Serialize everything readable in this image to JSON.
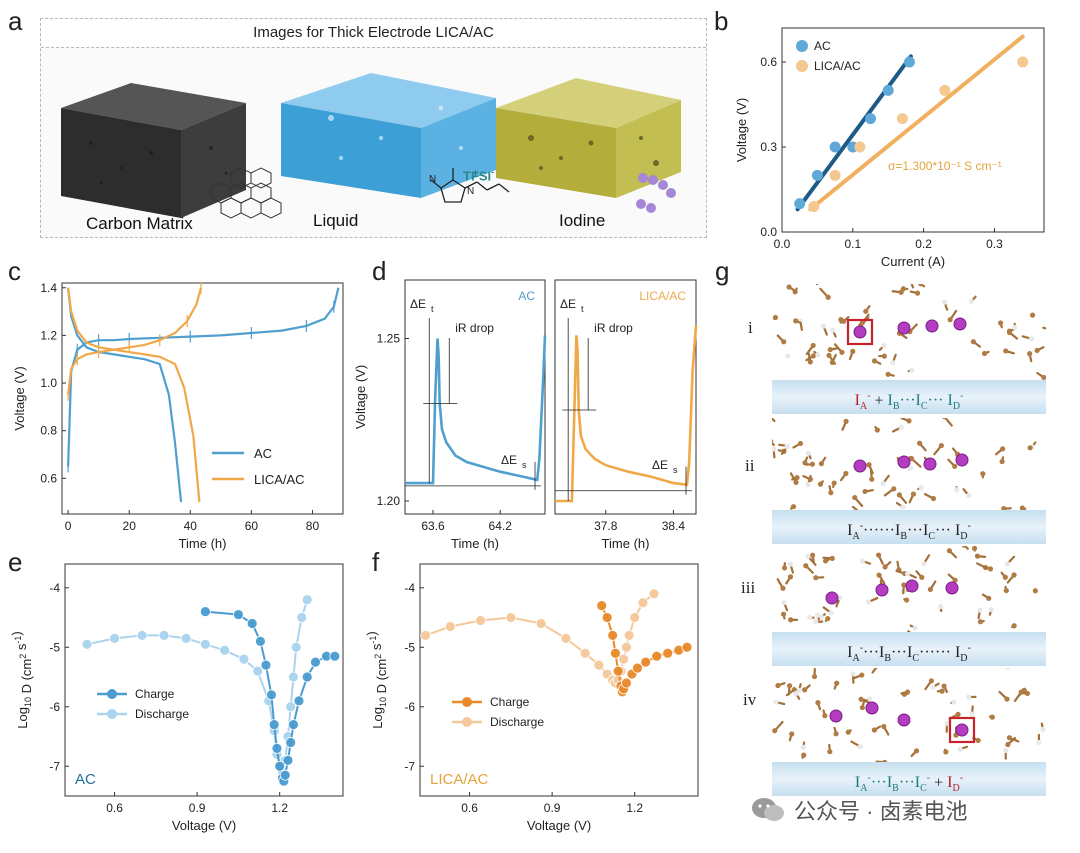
{
  "panel_labels": {
    "a": "a",
    "b": "b",
    "c": "c",
    "d": "d",
    "e": "e",
    "f": "f",
    "g": "g"
  },
  "panel_a": {
    "title": "Images for Thick Electrode LICA/AC",
    "captions": [
      "Carbon Matrix",
      "Liquid",
      "Iodine"
    ],
    "tfsi_label": "TFSI",
    "tfsi_sup": "-",
    "colors": {
      "carbon": "#3a3a3a",
      "liquid": "#3ca6dc",
      "iodine": "#b9b23c",
      "teal": "#2a8c8c"
    }
  },
  "panel_g": {
    "row_labels": [
      "i",
      "ii",
      "iii",
      "iv"
    ],
    "bands": [
      {
        "parts": [
          {
            "t": "I",
            "s": "A",
            "sup": "-",
            "c": "#b2232a"
          },
          {
            "t": " + "
          },
          {
            "t": "I",
            "s": "B",
            "sup": "",
            "c": "#1f7a7a"
          },
          {
            "t": "···I",
            "s": "C",
            "sup": "",
            "c": "#1f7a7a"
          },
          {
            "t": "··· I",
            "s": "D",
            "sup": "-",
            "c": "#1f7a7a"
          }
        ]
      },
      {
        "parts": [
          {
            "t": "I",
            "s": "A",
            "sup": "-",
            "c": "#222"
          },
          {
            "t": "······I",
            "s": "B",
            "sup": "",
            "c": "#222"
          },
          {
            "t": "···I",
            "s": "C",
            "sup": "",
            "c": "#222"
          },
          {
            "t": "··· I",
            "s": "D",
            "sup": "-",
            "c": "#222"
          }
        ]
      },
      {
        "parts": [
          {
            "t": "I",
            "s": "A",
            "sup": "-",
            "c": "#222"
          },
          {
            "t": "···I",
            "s": "B",
            "sup": "",
            "c": "#222"
          },
          {
            "t": "···I",
            "s": "C",
            "sup": "",
            "c": "#222"
          },
          {
            "t": "······ I",
            "s": "D",
            "sup": "-",
            "c": "#222"
          }
        ]
      },
      {
        "parts": [
          {
            "t": "I",
            "s": "A",
            "sup": "-",
            "c": "#1f7a7a"
          },
          {
            "t": "···I",
            "s": "B",
            "sup": "",
            "c": "#1f7a7a"
          },
          {
            "t": "···I",
            "s": "C",
            "sup": "-",
            "c": "#1f7a7a"
          },
          {
            "t": " + "
          },
          {
            "t": "I",
            "s": "D",
            "sup": "-",
            "c": "#b2232a"
          }
        ]
      }
    ]
  },
  "watermark": {
    "text": "公众号 · 卤素电池"
  },
  "chart_data": [
    {
      "id": "b",
      "type": "scatter",
      "xlabel": "Current (A)",
      "ylabel": "Voltage (V)",
      "xlim": [
        0,
        0.37
      ],
      "ylim": [
        0,
        0.72
      ],
      "xticks": [
        0,
        0.1,
        0.2,
        0.3
      ],
      "xtick_labels": [
        "0.0",
        "0.1",
        "0.2",
        "0.3"
      ],
      "yticks": [
        0,
        0.3,
        0.6
      ],
      "ytick_labels": [
        "0.0",
        "0.3",
        "0.6"
      ],
      "annotation": "σ=1.300*10⁻¹ S cm⁻¹",
      "legend": "top-left",
      "series": [
        {
          "name": "AC",
          "color": "#5fa9d8",
          "fit_color": "#1e5a86",
          "x": [
            0.025,
            0.05,
            0.075,
            0.1,
            0.125,
            0.15,
            0.18
          ],
          "y": [
            0.1,
            0.2,
            0.3,
            0.3,
            0.4,
            0.5,
            0.6
          ],
          "fit": [
            [
              0.022,
              0.08
            ],
            [
              0.182,
              0.62
            ]
          ]
        },
        {
          "name": "LICA/AC",
          "color": "#f3c98f",
          "fit_color": "#f0b060",
          "x": [
            0.045,
            0.075,
            0.11,
            0.17,
            0.23,
            0.34
          ],
          "y": [
            0.09,
            0.2,
            0.3,
            0.4,
            0.5,
            0.6
          ],
          "fit": [
            [
              0.04,
              0.08
            ],
            [
              0.34,
              0.69
            ]
          ]
        }
      ]
    },
    {
      "id": "c",
      "type": "line",
      "xlabel": "Time (h)",
      "ylabel": "Voltage (V)",
      "xlim": [
        -2,
        90
      ],
      "ylim": [
        0.45,
        1.42
      ],
      "xticks": [
        0,
        20,
        40,
        60,
        80
      ],
      "xtick_labels": [
        "0",
        "20",
        "40",
        "60",
        "80"
      ],
      "yticks": [
        0.6,
        0.8,
        1.0,
        1.2,
        1.4
      ],
      "ytick_labels": [
        "0.6",
        "0.8",
        "1.0",
        "1.2",
        "1.4"
      ],
      "legend": "bottom-right",
      "series": [
        {
          "name": "AC",
          "color": "#4f9fcf",
          "charge": {
            "x": [
              0,
              1,
              3,
              6,
              10,
              15,
              20,
              30,
              40,
              50,
              60,
              70,
              78,
              84,
              87,
              88.5
            ],
            "y": [
              0.65,
              1.05,
              1.14,
              1.17,
              1.18,
              1.18,
              1.185,
              1.19,
              1.195,
              1.2,
              1.21,
              1.22,
              1.24,
              1.27,
              1.32,
              1.4
            ]
          },
          "discharge": {
            "x": [
              0,
              1,
              3,
              6,
              10,
              15,
              20,
              25,
              30,
              33,
              35,
              37
            ],
            "y": [
              1.4,
              1.28,
              1.2,
              1.15,
              1.13,
              1.12,
              1.11,
              1.1,
              1.08,
              0.95,
              0.75,
              0.5
            ]
          }
        },
        {
          "name": "LICA/AC",
          "color": "#f0a848",
          "charge": {
            "x": [
              0,
              1,
              3,
              6,
              10,
              15,
              20,
              25,
              30,
              35,
              39,
              42,
              43.5
            ],
            "y": [
              0.95,
              1.06,
              1.1,
              1.12,
              1.13,
              1.14,
              1.15,
              1.16,
              1.18,
              1.21,
              1.26,
              1.33,
              1.4
            ]
          },
          "discharge": {
            "x": [
              0,
              1,
              3,
              6,
              10,
              15,
              20,
              25,
              30,
              35,
              38,
              41,
              43
            ],
            "y": [
              1.4,
              1.3,
              1.22,
              1.17,
              1.15,
              1.14,
              1.13,
              1.12,
              1.11,
              1.08,
              0.98,
              0.78,
              0.5
            ]
          }
        }
      ]
    },
    {
      "id": "d-left",
      "type": "line",
      "title": "AC",
      "xlabel": "Time (h)",
      "ylabel": "Voltage (V)",
      "xlim": [
        63.35,
        64.6
      ],
      "ylim": [
        1.196,
        1.268
      ],
      "xticks": [
        63.6,
        64.2
      ],
      "xtick_labels": [
        "63.6",
        "64.2"
      ],
      "yticks": [
        1.2,
        1.25
      ],
      "ytick_labels": [
        "1.20",
        "1.25"
      ],
      "annotations": {
        "delta_et": "ΔE",
        "delta_et_sub": "t",
        "ir_drop": "iR drop",
        "delta_es": "ΔE",
        "delta_es_sub": "s"
      },
      "series": [
        {
          "name": "AC",
          "color": "#4f9fcf",
          "x": [
            63.35,
            63.6,
            63.62,
            63.64,
            63.65,
            63.66,
            63.68,
            63.72,
            63.8,
            63.9,
            64.0,
            64.2,
            64.4,
            64.53,
            64.55,
            64.58,
            64.6
          ],
          "y": [
            1.2055,
            1.2055,
            1.232,
            1.25,
            1.245,
            1.23,
            1.222,
            1.218,
            1.214,
            1.212,
            1.211,
            1.209,
            1.2075,
            1.2065,
            1.213,
            1.235,
            1.251
          ]
        }
      ]
    },
    {
      "id": "d-right",
      "type": "line",
      "title": "LICA/AC",
      "xlabel": "Time (h)",
      "ylabel": "",
      "xlim": [
        37.35,
        38.6
      ],
      "ylim": [
        1.196,
        1.268
      ],
      "xticks": [
        37.8,
        38.4
      ],
      "xtick_labels": [
        "37.8",
        "38.4"
      ],
      "yticks": [],
      "ytick_labels": [],
      "annotations": {
        "delta_et": "ΔE",
        "delta_et_sub": "t",
        "ir_drop": "iR drop",
        "delta_es": "ΔE",
        "delta_es_sub": "s"
      },
      "series": [
        {
          "name": "LICA/AC",
          "color": "#f0a848",
          "x": [
            37.35,
            37.5,
            37.52,
            37.54,
            37.55,
            37.56,
            37.58,
            37.62,
            37.7,
            37.8,
            38.0,
            38.2,
            38.4,
            38.52,
            38.54,
            38.57,
            38.6
          ],
          "y": [
            1.2,
            1.2,
            1.226,
            1.251,
            1.246,
            1.228,
            1.22,
            1.216,
            1.213,
            1.211,
            1.209,
            1.2075,
            1.2055,
            1.205,
            1.212,
            1.24,
            1.254
          ]
        }
      ]
    },
    {
      "id": "e",
      "type": "line",
      "xlabel": "Voltage (V)",
      "ylabel": "Log10 D (cm2 s-1)",
      "label": "AC",
      "xlim": [
        0.42,
        1.43
      ],
      "ylim": [
        -7.5,
        -3.6
      ],
      "xticks": [
        0.6,
        0.9,
        1.2
      ],
      "xtick_labels": [
        "0.6",
        "0.9",
        "1.2"
      ],
      "yticks": [
        -4,
        -5,
        -6,
        -7
      ],
      "ytick_labels": [
        "-4",
        "-5",
        "-6",
        "-7"
      ],
      "legend": "left",
      "series": [
        {
          "name": "Charge",
          "color": "#4a9bd0",
          "x": [
            0.93,
            1.05,
            1.1,
            1.13,
            1.15,
            1.17,
            1.18,
            1.19,
            1.2,
            1.21,
            1.215,
            1.22,
            1.23,
            1.24,
            1.25,
            1.27,
            1.3,
            1.33,
            1.37,
            1.4
          ],
          "y": [
            -4.4,
            -4.45,
            -4.6,
            -4.9,
            -5.3,
            -5.8,
            -6.3,
            -6.7,
            -7.0,
            -7.2,
            -7.25,
            -7.15,
            -6.9,
            -6.6,
            -6.3,
            -5.9,
            -5.5,
            -5.25,
            -5.15,
            -5.15
          ]
        },
        {
          "name": "Discharge",
          "color": "#a9d3ee",
          "x": [
            0.5,
            0.6,
            0.7,
            0.78,
            0.86,
            0.93,
            1.0,
            1.07,
            1.12,
            1.16,
            1.18,
            1.19,
            1.2,
            1.21,
            1.22,
            1.23,
            1.24,
            1.25,
            1.26,
            1.28,
            1.3
          ],
          "y": [
            -4.95,
            -4.85,
            -4.8,
            -4.8,
            -4.85,
            -4.95,
            -5.05,
            -5.2,
            -5.4,
            -5.9,
            -6.4,
            -6.8,
            -7.0,
            -7.1,
            -6.9,
            -6.5,
            -6.0,
            -5.5,
            -5.0,
            -4.5,
            -4.2
          ]
        }
      ]
    },
    {
      "id": "f",
      "type": "line",
      "xlabel": "Voltage (V)",
      "ylabel": "Log10 D (cm2 s-1)",
      "label": "LICA/AC",
      "xlim": [
        0.42,
        1.43
      ],
      "ylim": [
        -7.5,
        -3.6
      ],
      "xticks": [
        0.6,
        0.9,
        1.2
      ],
      "xtick_labels": [
        "0.6",
        "0.9",
        "1.2"
      ],
      "yticks": [
        -4,
        -5,
        -6,
        -7
      ],
      "ytick_labels": [
        "-4",
        "-5",
        "-6",
        "-7"
      ],
      "legend": "bottom-left",
      "series": [
        {
          "name": "Charge",
          "color": "#e88a2a",
          "x": [
            1.08,
            1.1,
            1.12,
            1.13,
            1.14,
            1.15,
            1.155,
            1.16,
            1.17,
            1.19,
            1.21,
            1.24,
            1.28,
            1.32,
            1.36,
            1.39
          ],
          "y": [
            -4.3,
            -4.5,
            -4.8,
            -5.1,
            -5.4,
            -5.65,
            -5.75,
            -5.7,
            -5.6,
            -5.45,
            -5.35,
            -5.25,
            -5.15,
            -5.1,
            -5.05,
            -5.0
          ]
        },
        {
          "name": "Discharge",
          "color": "#f5c89a",
          "x": [
            0.44,
            0.53,
            0.64,
            0.75,
            0.86,
            0.95,
            1.02,
            1.07,
            1.1,
            1.12,
            1.13,
            1.14,
            1.15,
            1.16,
            1.17,
            1.18,
            1.2,
            1.23,
            1.27
          ],
          "y": [
            -4.8,
            -4.65,
            -4.55,
            -4.5,
            -4.6,
            -4.85,
            -5.1,
            -5.3,
            -5.45,
            -5.55,
            -5.6,
            -5.55,
            -5.4,
            -5.2,
            -5.0,
            -4.8,
            -4.5,
            -4.25,
            -4.1
          ]
        }
      ]
    }
  ]
}
